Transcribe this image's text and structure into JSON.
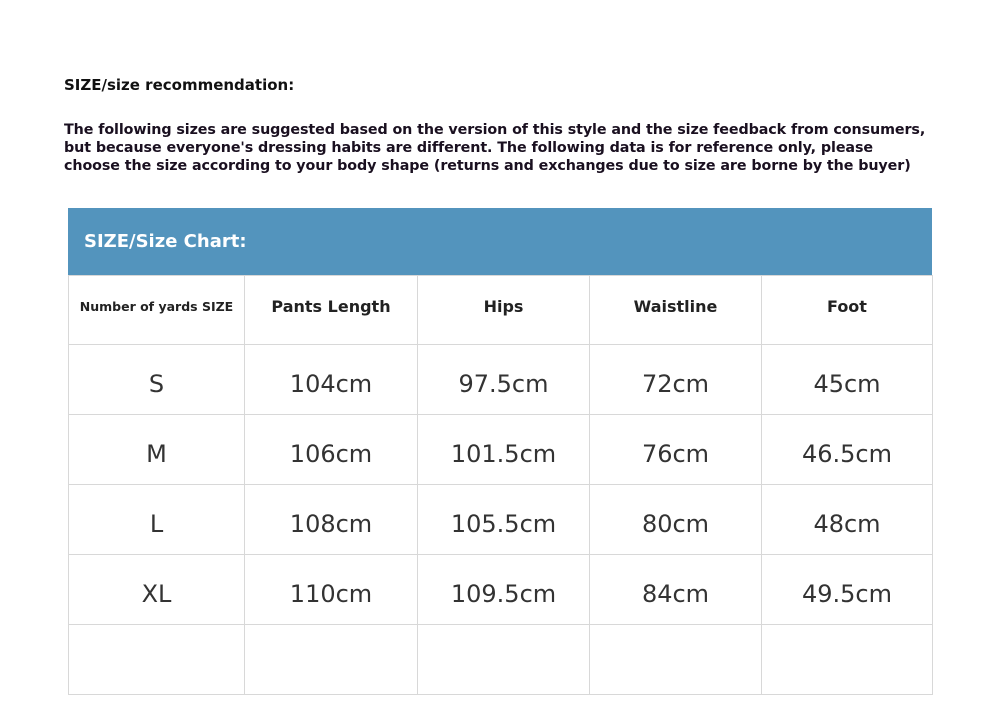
{
  "title": "SIZE/size recommendation:",
  "intro": "The following sizes are suggested based on the version of this style and the size feedback from consumers,\nbut because everyone's dressing habits are different. The following data is for reference only, please\nchoose the size according to your body shape (returns and exchanges due to size are borne by the buyer)",
  "chart": {
    "heading": "SIZE/Size Chart:",
    "header_color": "#5394bd",
    "columns": [
      "Number of yards SIZE",
      "Pants Length",
      "Hips",
      "Waistline",
      "Foot"
    ],
    "rows": [
      [
        "S",
        "104cm",
        "97.5cm",
        "72cm",
        "45cm"
      ],
      [
        "M",
        "106cm",
        "101.5cm",
        "76cm",
        "46.5cm"
      ],
      [
        "L",
        "108cm",
        "105.5cm",
        "80cm",
        "48cm"
      ],
      [
        "XL",
        "110cm",
        "109.5cm",
        "84cm",
        "49.5cm"
      ],
      [
        "",
        "",
        "",
        "",
        ""
      ]
    ]
  }
}
